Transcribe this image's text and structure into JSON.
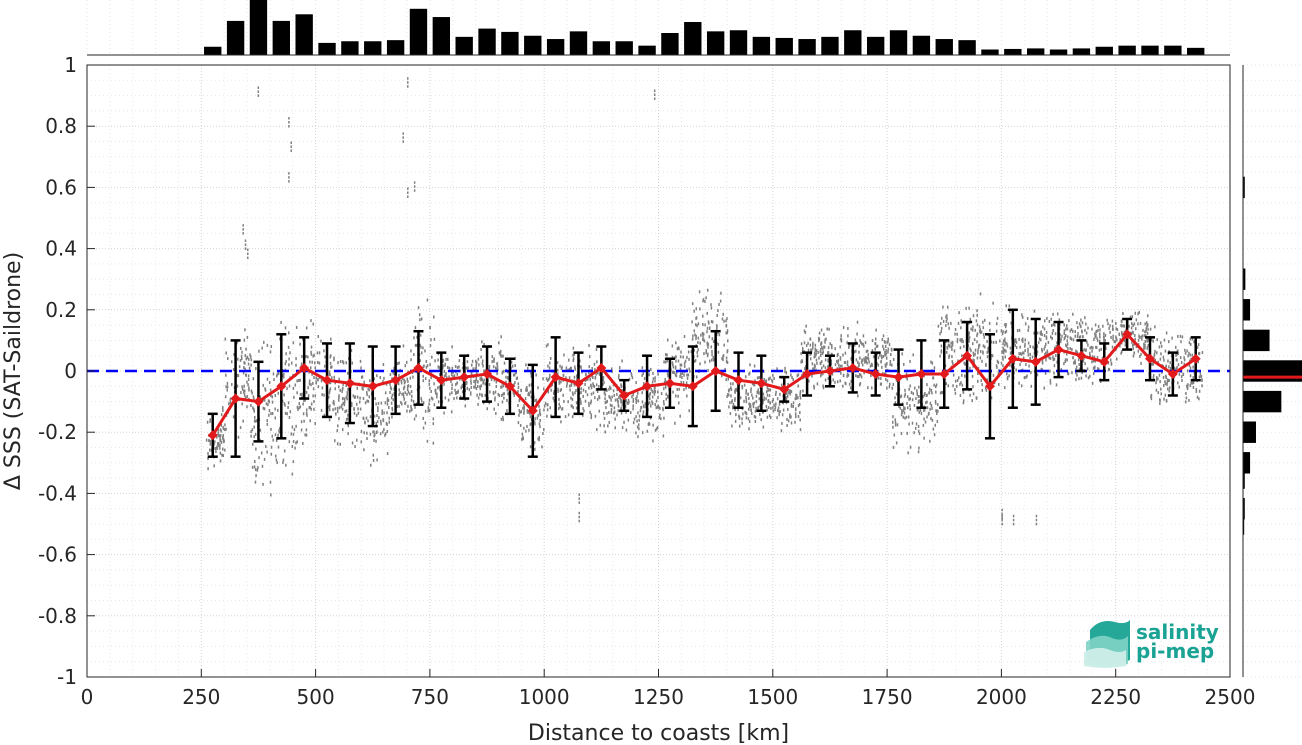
{
  "chart_data": {
    "type": "scatter",
    "xlabel": "Distance to coasts [km]",
    "ylabel": "Δ SSS (SAT-Saildrone)",
    "xlim": [
      0,
      2500
    ],
    "ylim": [
      -1,
      1
    ],
    "xticks": [
      0,
      250,
      500,
      750,
      1000,
      1250,
      1500,
      1750,
      2000,
      2250,
      2500
    ],
    "yticks": [
      -1,
      -0.8,
      -0.6,
      -0.4,
      -0.2,
      0,
      0.2,
      0.4,
      0.6,
      0.8,
      1
    ],
    "xtick_labels": [
      "0",
      "250",
      "500",
      "750",
      "1000",
      "1250",
      "1500",
      "1750",
      "2000",
      "2250",
      "2500"
    ],
    "ytick_labels": [
      "-1",
      "-0.8",
      "-0.6",
      "-0.4",
      "-0.2",
      "0",
      "0.2",
      "0.4",
      "0.6",
      "0.8",
      "1"
    ],
    "grid": true,
    "zero_line": {
      "y": 0,
      "color": "#0000ff",
      "style": "dashed"
    },
    "binned_mean": {
      "color": "#e31a1c",
      "errorbar_color": "#000000",
      "x": [
        275,
        325,
        375,
        425,
        475,
        525,
        575,
        625,
        675,
        725,
        775,
        825,
        875,
        925,
        975,
        1025,
        1075,
        1125,
        1175,
        1225,
        1275,
        1325,
        1375,
        1425,
        1475,
        1525,
        1575,
        1625,
        1675,
        1725,
        1775,
        1825,
        1875,
        1925,
        1975,
        2025,
        2075,
        2125,
        2175,
        2225,
        2275,
        2325,
        2375,
        2425
      ],
      "y": [
        -0.21,
        -0.09,
        -0.1,
        -0.05,
        0.01,
        -0.03,
        -0.04,
        -0.05,
        -0.03,
        0.01,
        -0.03,
        -0.02,
        -0.01,
        -0.05,
        -0.13,
        -0.02,
        -0.04,
        0.01,
        -0.08,
        -0.05,
        -0.04,
        -0.05,
        0.0,
        -0.03,
        -0.04,
        -0.06,
        -0.01,
        0.0,
        0.01,
        -0.01,
        -0.02,
        -0.01,
        -0.01,
        0.05,
        -0.05,
        0.04,
        0.03,
        0.07,
        0.05,
        0.03,
        0.12,
        0.04,
        -0.01,
        0.04
      ],
      "err": [
        0.07,
        0.19,
        0.13,
        0.17,
        0.1,
        0.12,
        0.13,
        0.13,
        0.11,
        0.12,
        0.09,
        0.07,
        0.09,
        0.09,
        0.15,
        0.13,
        0.1,
        0.07,
        0.05,
        0.1,
        0.08,
        0.13,
        0.13,
        0.09,
        0.09,
        0.04,
        0.07,
        0.05,
        0.08,
        0.07,
        0.09,
        0.11,
        0.11,
        0.11,
        0.17,
        0.16,
        0.14,
        0.09,
        0.05,
        0.06,
        0.05,
        0.07,
        0.07,
        0.07
      ]
    },
    "scatter_color": "#808080",
    "scatter_clusters": [
      {
        "x0": 260,
        "x1": 300,
        "ymin": -0.33,
        "ymax": -0.1
      },
      {
        "x0": 300,
        "x1": 360,
        "ymin": -0.25,
        "ymax": 0.18
      },
      {
        "x0": 360,
        "x1": 420,
        "ymin": -0.45,
        "ymax": 0.15
      },
      {
        "x0": 420,
        "x1": 480,
        "ymin": -0.4,
        "ymax": 0.22
      },
      {
        "x0": 480,
        "x1": 540,
        "ymin": -0.25,
        "ymax": 0.2
      },
      {
        "x0": 540,
        "x1": 600,
        "ymin": -0.3,
        "ymax": 0.12
      },
      {
        "x0": 600,
        "x1": 660,
        "ymin": -0.36,
        "ymax": 0.1
      },
      {
        "x0": 660,
        "x1": 710,
        "ymin": -0.2,
        "ymax": 0.1
      },
      {
        "x0": 710,
        "x1": 760,
        "ymin": -0.28,
        "ymax": 0.3
      },
      {
        "x0": 760,
        "x1": 860,
        "ymin": -0.15,
        "ymax": 0.1
      },
      {
        "x0": 860,
        "x1": 940,
        "ymin": -0.2,
        "ymax": 0.15
      },
      {
        "x0": 940,
        "x1": 1000,
        "ymin": -0.3,
        "ymax": 0.05
      },
      {
        "x0": 1000,
        "x1": 1120,
        "ymin": -0.2,
        "ymax": 0.12
      },
      {
        "x0": 1120,
        "x1": 1260,
        "ymin": -0.25,
        "ymax": 0.08
      },
      {
        "x0": 1260,
        "x1": 1320,
        "ymin": -0.2,
        "ymax": 0.18
      },
      {
        "x0": 1320,
        "x1": 1400,
        "ymin": -0.1,
        "ymax": 0.33
      },
      {
        "x0": 1400,
        "x1": 1560,
        "ymin": -0.22,
        "ymax": 0.05
      },
      {
        "x0": 1560,
        "x1": 1760,
        "ymin": -0.1,
        "ymax": 0.18
      },
      {
        "x0": 1760,
        "x1": 1860,
        "ymin": -0.3,
        "ymax": 0.1
      },
      {
        "x0": 1860,
        "x1": 2000,
        "ymin": -0.15,
        "ymax": 0.3
      },
      {
        "x0": 2000,
        "x1": 2120,
        "ymin": -0.1,
        "ymax": 0.25
      },
      {
        "x0": 2120,
        "x1": 2240,
        "ymin": -0.08,
        "ymax": 0.25
      },
      {
        "x0": 2240,
        "x1": 2320,
        "ymin": 0.02,
        "ymax": 0.22
      },
      {
        "x0": 2320,
        "x1": 2440,
        "ymin": -0.15,
        "ymax": 0.18
      }
    ],
    "scatter_outliers": [
      [
        340,
        0.48
      ],
      [
        345,
        0.43
      ],
      [
        350,
        0.4
      ],
      [
        373,
        0.93
      ],
      [
        440,
        0.83
      ],
      [
        445,
        0.75
      ],
      [
        440,
        0.65
      ],
      [
        700,
        0.96
      ],
      [
        690,
        0.78
      ],
      [
        700,
        0.6
      ],
      [
        715,
        0.62
      ],
      [
        1240,
        0.92
      ],
      [
        1075,
        -0.4
      ],
      [
        1075,
        -0.46
      ],
      [
        2000,
        -0.47
      ],
      [
        2025,
        -0.47
      ],
      [
        2075,
        -0.47
      ],
      [
        2000,
        -0.45
      ]
    ],
    "top_histogram": {
      "color": "#000000",
      "bin_centers": [
        275,
        325,
        375,
        425,
        475,
        525,
        575,
        625,
        675,
        725,
        775,
        825,
        875,
        925,
        975,
        1025,
        1075,
        1125,
        1175,
        1225,
        1275,
        1325,
        1375,
        1425,
        1475,
        1525,
        1575,
        1625,
        1675,
        1725,
        1775,
        1825,
        1875,
        1925,
        1975,
        2025,
        2075,
        2125,
        2175,
        2225,
        2275,
        2325,
        2375,
        2425
      ],
      "values": [
        0.15,
        0.62,
        1.0,
        0.62,
        0.74,
        0.22,
        0.25,
        0.25,
        0.27,
        0.84,
        0.69,
        0.33,
        0.48,
        0.42,
        0.35,
        0.29,
        0.43,
        0.25,
        0.25,
        0.17,
        0.4,
        0.6,
        0.43,
        0.45,
        0.33,
        0.31,
        0.29,
        0.33,
        0.45,
        0.33,
        0.45,
        0.35,
        0.29,
        0.27,
        0.1,
        0.11,
        0.12,
        0.1,
        0.12,
        0.15,
        0.17,
        0.17,
        0.17,
        0.13
      ]
    },
    "right_histogram": {
      "color": "#000000",
      "mean_line_color": "#e31a1c",
      "mean_y": -0.02,
      "bin_centers": [
        -0.5,
        -0.45,
        -0.35,
        -0.3,
        -0.2,
        -0.1,
        0,
        0.1,
        0.2,
        0.3,
        0.6
      ],
      "values": [
        0.02,
        0.03,
        0.03,
        0.12,
        0.22,
        0.65,
        1.0,
        0.45,
        0.12,
        0.04,
        0.03
      ]
    },
    "logo": {
      "line1": "salinity",
      "line2": "pi-mep",
      "color": "#1aa394"
    }
  }
}
